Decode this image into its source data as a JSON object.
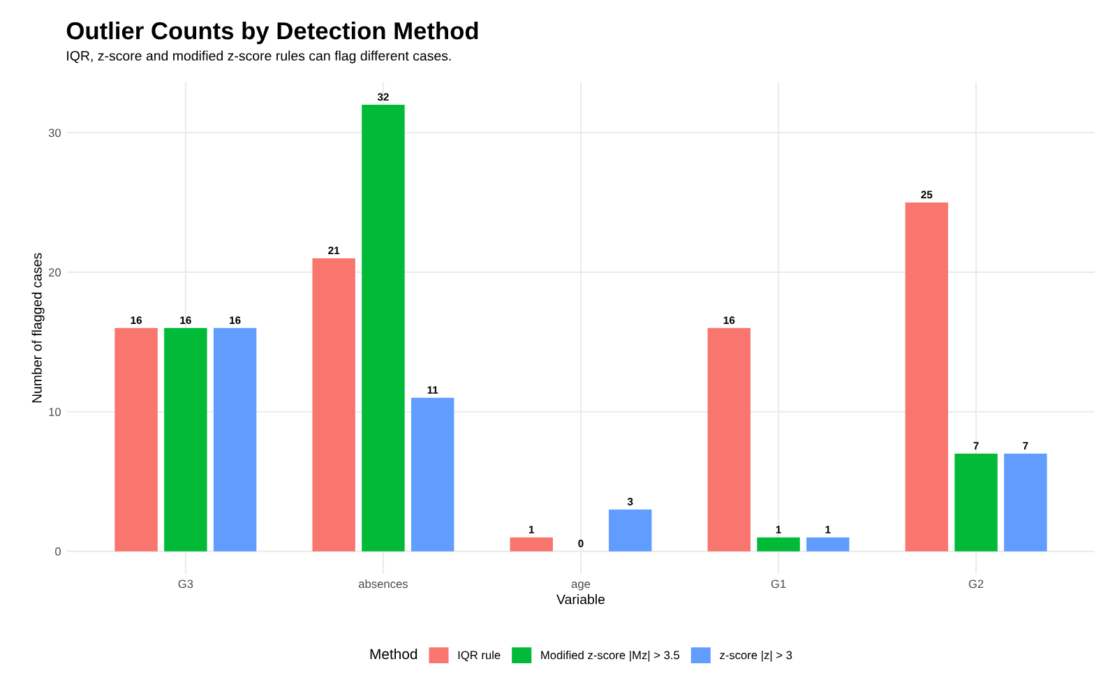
{
  "chart_data": {
    "type": "bar",
    "title": "Outlier Counts by Detection Method",
    "subtitle": "IQR, z-score and modified z-score rules can flag different cases.",
    "xlabel": "Variable",
    "ylabel": "Number of flagged cases",
    "legend_title": "Method",
    "categories": [
      "G3",
      "absences",
      "age",
      "G1",
      "G2"
    ],
    "series": [
      {
        "name": "IQR rule",
        "color": "#f8766d",
        "values": [
          16,
          21,
          1,
          16,
          25
        ]
      },
      {
        "name": "Modified z-score |Mz| > 3.5",
        "color": "#00ba38",
        "values": [
          16,
          32,
          0,
          1,
          7
        ]
      },
      {
        "name": "z-score |z| > 3",
        "color": "#619cff",
        "values": [
          16,
          11,
          3,
          1,
          7
        ]
      }
    ],
    "ylim": [
      -1.6,
      33.6
    ],
    "yticks": [
      0,
      10,
      20,
      30
    ],
    "grid": true,
    "legend": "bottom",
    "data_labels": true
  }
}
